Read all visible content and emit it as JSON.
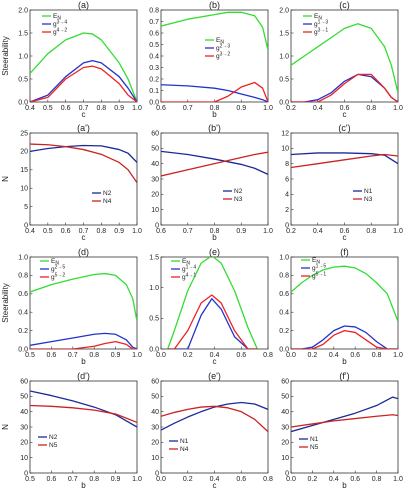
{
  "chart_data": [
    {
      "id": "a",
      "type": "line",
      "panel_label": "(a)",
      "xlabel": "c",
      "ylabel": "Steerability",
      "xlim": [
        0.4,
        1.0
      ],
      "ylim": [
        0,
        2.0
      ],
      "xticks": [
        "0.4",
        "0.5",
        "0.6",
        "0.7",
        "0.8",
        "0.9",
        "1.0"
      ],
      "yticks": [
        "0.0",
        "0.5",
        "1.0",
        "1.5",
        "2.0"
      ],
      "x": [
        0.4,
        0.5,
        0.6,
        0.7,
        0.75,
        0.8,
        0.9,
        0.95,
        1.0
      ],
      "series": [
        {
          "name": "E_N",
          "color": "#33dd33",
          "values": [
            0.62,
            1.05,
            1.35,
            1.5,
            1.48,
            1.35,
            0.85,
            0.5,
            0.0
          ]
        },
        {
          "name": "g^{3→4}",
          "color": "#2233cc",
          "values": [
            0.0,
            0.15,
            0.55,
            0.85,
            0.9,
            0.85,
            0.55,
            0.3,
            0.0
          ]
        },
        {
          "name": "g^{4→2}",
          "color": "#ee2222",
          "values": [
            0.0,
            0.1,
            0.5,
            0.75,
            0.78,
            0.72,
            0.4,
            0.15,
            0.0
          ]
        }
      ]
    },
    {
      "id": "b",
      "type": "line",
      "panel_label": "(b)",
      "xlabel": "b",
      "ylabel": "",
      "xlim": [
        0.6,
        1.0
      ],
      "ylim": [
        0,
        0.8
      ],
      "xticks": [
        "0.6",
        "0.7",
        "0.8",
        "0.9",
        "1.0"
      ],
      "yticks": [
        "0.0",
        "0.1",
        "0.2",
        "0.3",
        "0.4",
        "0.5",
        "0.6",
        "0.7",
        "0.8"
      ],
      "x": [
        0.6,
        0.7,
        0.8,
        0.85,
        0.9,
        0.95,
        0.98,
        1.0
      ],
      "series": [
        {
          "name": "E_N",
          "color": "#33dd33",
          "values": [
            0.66,
            0.72,
            0.76,
            0.78,
            0.78,
            0.75,
            0.65,
            0.45
          ]
        },
        {
          "name": "g^{2→3}",
          "color": "#2233cc",
          "values": [
            0.15,
            0.14,
            0.12,
            0.1,
            0.07,
            0.04,
            0.02,
            0.0
          ]
        },
        {
          "name": "g^{3→2}",
          "color": "#ee2222",
          "values": [
            0.0,
            0.0,
            0.0,
            0.05,
            0.13,
            0.17,
            0.12,
            0.0
          ]
        }
      ]
    },
    {
      "id": "c",
      "type": "line",
      "panel_label": "(c)",
      "xlabel": "c",
      "ylabel": "",
      "xlim": [
        0.2,
        1.0
      ],
      "ylim": [
        0,
        2.0
      ],
      "xticks": [
        "0.2",
        "0.4",
        "0.6",
        "0.8",
        "1.0"
      ],
      "yticks": [
        "0.0",
        "0.5",
        "1.0",
        "1.5",
        "2.0"
      ],
      "x": [
        0.2,
        0.3,
        0.4,
        0.5,
        0.6,
        0.7,
        0.8,
        0.9,
        0.95,
        1.0
      ],
      "series": [
        {
          "name": "E_N",
          "color": "#33dd33",
          "values": [
            0.8,
            1.0,
            1.2,
            1.4,
            1.6,
            1.7,
            1.6,
            1.2,
            0.8,
            0.2
          ]
        },
        {
          "name": "g^{1→3}",
          "color": "#2233cc",
          "values": [
            0.0,
            0.0,
            0.05,
            0.2,
            0.45,
            0.6,
            0.55,
            0.3,
            0.1,
            0.0
          ]
        },
        {
          "name": "g^{3→1}",
          "color": "#ee2222",
          "values": [
            0.0,
            0.0,
            0.0,
            0.15,
            0.4,
            0.6,
            0.6,
            0.3,
            0.1,
            0.0
          ]
        }
      ]
    },
    {
      "id": "a'",
      "type": "line",
      "panel_label": "(a')",
      "xlabel": "c",
      "ylabel": "N",
      "xlim": [
        0.4,
        1.0
      ],
      "ylim": [
        0,
        25
      ],
      "xticks": [
        "0.4",
        "0.5",
        "0.6",
        "0.7",
        "0.8",
        "0.9",
        "1.0"
      ],
      "yticks": [
        "0",
        "5",
        "10",
        "15",
        "20",
        "25"
      ],
      "x": [
        0.4,
        0.5,
        0.6,
        0.7,
        0.8,
        0.9,
        0.95,
        1.0
      ],
      "series": [
        {
          "name": "N2",
          "color": "#1a2a99",
          "values": [
            20.0,
            20.8,
            21.3,
            21.6,
            21.5,
            20.5,
            19.5,
            17.0
          ]
        },
        {
          "name": "N4",
          "color": "#cc2222",
          "values": [
            22.0,
            21.8,
            21.3,
            20.5,
            19.2,
            17.0,
            15.0,
            11.5
          ]
        }
      ]
    },
    {
      "id": "b'",
      "type": "line",
      "panel_label": "(b')",
      "xlabel": "b",
      "ylabel": "",
      "xlim": [
        0.6,
        1.0
      ],
      "ylim": [
        0,
        60
      ],
      "xticks": [
        "0.6",
        "0.7",
        "0.8",
        "0.9",
        "1.0"
      ],
      "yticks": [
        "0",
        "10",
        "20",
        "30",
        "40",
        "50",
        "60"
      ],
      "x": [
        0.6,
        0.7,
        0.8,
        0.9,
        0.95,
        1.0
      ],
      "series": [
        {
          "name": "N2",
          "color": "#1a2a99",
          "values": [
            48.0,
            46.0,
            43.0,
            39.5,
            37.0,
            33.0
          ]
        },
        {
          "name": "N3",
          "color": "#cc2222",
          "values": [
            32.0,
            36.0,
            40.0,
            44.0,
            46.0,
            47.5
          ]
        }
      ]
    },
    {
      "id": "c'",
      "type": "line",
      "panel_label": "(c')",
      "xlabel": "c",
      "ylabel": "",
      "xlim": [
        0.2,
        1.0
      ],
      "ylim": [
        0,
        12
      ],
      "xticks": [
        "0.2",
        "0.4",
        "0.6",
        "0.8",
        "1.0"
      ],
      "yticks": [
        "0",
        "2",
        "4",
        "6",
        "8",
        "10",
        "12"
      ],
      "x": [
        0.2,
        0.4,
        0.6,
        0.8,
        0.9,
        1.0
      ],
      "series": [
        {
          "name": "N1",
          "color": "#1a2a99",
          "values": [
            9.2,
            9.4,
            9.4,
            9.3,
            9.1,
            8.0
          ]
        },
        {
          "name": "N3",
          "color": "#cc2222",
          "values": [
            7.5,
            8.0,
            8.5,
            9.0,
            9.2,
            9.0
          ]
        }
      ]
    },
    {
      "id": "d",
      "type": "line",
      "panel_label": "(d)",
      "xlabel": "b",
      "ylabel": "Steerability",
      "xlim": [
        0.5,
        1.0
      ],
      "ylim": [
        0,
        1.0
      ],
      "xticks": [
        "0.5",
        "0.6",
        "0.7",
        "0.8",
        "0.9",
        "1.0"
      ],
      "yticks": [
        "0.0",
        "0.2",
        "0.4",
        "0.6",
        "0.8",
        "1.0"
      ],
      "x": [
        0.5,
        0.6,
        0.7,
        0.8,
        0.85,
        0.9,
        0.95,
        0.98,
        1.0
      ],
      "series": [
        {
          "name": "E_N",
          "color": "#33dd33",
          "values": [
            0.62,
            0.7,
            0.76,
            0.81,
            0.82,
            0.8,
            0.7,
            0.55,
            0.3
          ]
        },
        {
          "name": "g^{2→5}",
          "color": "#2233cc",
          "values": [
            0.04,
            0.08,
            0.12,
            0.16,
            0.17,
            0.16,
            0.1,
            0.02,
            0.0
          ]
        },
        {
          "name": "g^{5→2}",
          "color": "#ee2222",
          "values": [
            0.0,
            0.0,
            0.0,
            0.03,
            0.06,
            0.08,
            0.05,
            0.0,
            0.0
          ]
        }
      ]
    },
    {
      "id": "e",
      "type": "line",
      "panel_label": "(e)",
      "xlabel": "c",
      "ylabel": "",
      "xlim": [
        0.0,
        0.8
      ],
      "ylim": [
        0,
        1.5
      ],
      "xticks": [
        "0.0",
        "0.2",
        "0.4",
        "0.6",
        "0.8"
      ],
      "yticks": [
        "0.0",
        "0.5",
        "1.0",
        "1.5"
      ],
      "x": [
        0.05,
        0.1,
        0.2,
        0.3,
        0.38,
        0.45,
        0.55,
        0.65,
        0.72
      ],
      "series": [
        {
          "name": "E_N",
          "color": "#33dd33",
          "values": [
            0.0,
            0.3,
            0.95,
            1.4,
            1.52,
            1.4,
            0.95,
            0.35,
            0.0
          ]
        },
        {
          "name": "g^{1→4}",
          "color": "#2233cc",
          "values": [
            0.0,
            0.0,
            0.0,
            0.55,
            0.82,
            0.65,
            0.2,
            0.0,
            0.0
          ]
        },
        {
          "name": "g^{4→1}",
          "color": "#ee2222",
          "values": [
            0.0,
            0.0,
            0.3,
            0.75,
            0.88,
            0.75,
            0.3,
            0.0,
            0.0
          ]
        }
      ]
    },
    {
      "id": "f",
      "type": "line",
      "panel_label": "(f)",
      "xlabel": "b",
      "ylabel": "",
      "xlim": [
        0.0,
        1.0
      ],
      "ylim": [
        0,
        1.0
      ],
      "xticks": [
        "0.0",
        "0.2",
        "0.4",
        "0.6",
        "0.8",
        "1.0"
      ],
      "yticks": [
        "0.0",
        "0.2",
        "0.4",
        "0.6",
        "0.8",
        "1.0"
      ],
      "x": [
        0.0,
        0.1,
        0.2,
        0.3,
        0.4,
        0.5,
        0.6,
        0.7,
        0.8,
        0.9,
        1.0
      ],
      "series": [
        {
          "name": "E_N",
          "color": "#33dd33",
          "values": [
            0.62,
            0.72,
            0.8,
            0.86,
            0.89,
            0.9,
            0.88,
            0.82,
            0.72,
            0.6,
            0.3
          ]
        },
        {
          "name": "g^{1→5}",
          "color": "#2233cc",
          "values": [
            0.0,
            0.0,
            0.02,
            0.1,
            0.2,
            0.25,
            0.24,
            0.18,
            0.08,
            0.0,
            0.0
          ]
        },
        {
          "name": "g^{5→1}",
          "color": "#ee2222",
          "values": [
            0.0,
            0.0,
            0.0,
            0.05,
            0.15,
            0.2,
            0.18,
            0.1,
            0.02,
            0.0,
            0.0
          ]
        }
      ]
    },
    {
      "id": "d'",
      "type": "line",
      "panel_label": "(d')",
      "xlabel": "b",
      "ylabel": "N",
      "xlim": [
        0.5,
        1.0
      ],
      "ylim": [
        0,
        60
      ],
      "xticks": [
        "0.5",
        "0.6",
        "0.7",
        "0.8",
        "0.9",
        "1.0"
      ],
      "yticks": [
        "0",
        "10",
        "20",
        "30",
        "40",
        "50",
        "60"
      ],
      "x": [
        0.5,
        0.6,
        0.7,
        0.8,
        0.9,
        1.0
      ],
      "series": [
        {
          "name": "N2",
          "color": "#1a2a99",
          "values": [
            53.5,
            50.5,
            47.0,
            43.0,
            38.0,
            30.0
          ]
        },
        {
          "name": "N5",
          "color": "#cc2222",
          "values": [
            44.0,
            43.5,
            42.5,
            41.0,
            38.5,
            33.0
          ]
        }
      ]
    },
    {
      "id": "e'",
      "type": "line",
      "panel_label": "(e')",
      "xlabel": "c",
      "ylabel": "",
      "xlim": [
        0.0,
        0.8
      ],
      "ylim": [
        0,
        60
      ],
      "xticks": [
        "0.0",
        "0.2",
        "0.4",
        "0.6",
        "0.8"
      ],
      "yticks": [
        "0",
        "10",
        "20",
        "30",
        "40",
        "50",
        "60"
      ],
      "x": [
        0.0,
        0.1,
        0.2,
        0.3,
        0.4,
        0.5,
        0.6,
        0.7,
        0.8
      ],
      "series": [
        {
          "name": "N1",
          "color": "#1a2a99",
          "values": [
            28.0,
            32.5,
            36.5,
            40.0,
            43.0,
            45.0,
            46.0,
            45.0,
            41.5
          ]
        },
        {
          "name": "N4",
          "color": "#cc2222",
          "values": [
            37.0,
            39.5,
            41.5,
            43.0,
            43.5,
            42.5,
            40.0,
            35.0,
            27.0
          ]
        }
      ]
    },
    {
      "id": "f'",
      "type": "line",
      "panel_label": "(f')",
      "xlabel": "b",
      "ylabel": "",
      "xlim": [
        0.0,
        1.0
      ],
      "ylim": [
        0,
        60
      ],
      "xticks": [
        "0.0",
        "0.2",
        "0.4",
        "0.6",
        "0.8",
        "1.0"
      ],
      "yticks": [
        "0",
        "10",
        "20",
        "30",
        "40",
        "50",
        "60"
      ],
      "x": [
        0.0,
        0.2,
        0.4,
        0.6,
        0.8,
        0.95,
        1.0
      ],
      "series": [
        {
          "name": "N1",
          "color": "#1a2a99",
          "values": [
            27.0,
            31.0,
            35.0,
            39.0,
            44.0,
            49.5,
            48.5
          ]
        },
        {
          "name": "N5",
          "color": "#cc2222",
          "values": [
            30.0,
            32.0,
            34.0,
            35.5,
            37.0,
            38.0,
            37.5
          ]
        }
      ]
    }
  ]
}
